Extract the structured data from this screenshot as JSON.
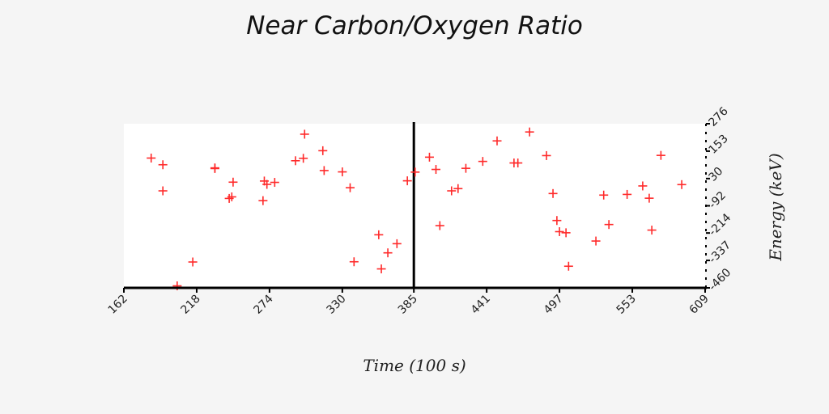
{
  "chart_data": {
    "type": "scatter",
    "title": "Near Carbon/Oxygen Ratio",
    "xlabel": "Time (100 s)",
    "ylabel": "Energy (keV)",
    "xlim": [
      162,
      609
    ],
    "ylim": [
      -460,
      276
    ],
    "x_ticks": [
      "162",
      "218",
      "274",
      "330",
      "385",
      "441",
      "497",
      "553",
      "609"
    ],
    "y_ticks": [
      "-460",
      "-337",
      "-214",
      "-92",
      "30",
      "153",
      "276"
    ],
    "x_tick_values": [
      162,
      218,
      274,
      330,
      385,
      441,
      497,
      553,
      609
    ],
    "y_tick_values": [
      -460,
      -337,
      -214,
      -92,
      30,
      153,
      276
    ],
    "vertical_line_x": 385,
    "marker_color": "#ff2a2a",
    "grid": false,
    "points": [
      {
        "x": 183,
        "y": 122
      },
      {
        "x": 192,
        "y": 92
      },
      {
        "x": 192,
        "y": -25
      },
      {
        "x": 203,
        "y": -451
      },
      {
        "x": 215,
        "y": -344
      },
      {
        "x": 232,
        "y": 78
      },
      {
        "x": 232,
        "y": 75
      },
      {
        "x": 243,
        "y": -59
      },
      {
        "x": 245,
        "y": -52
      },
      {
        "x": 246,
        "y": 14
      },
      {
        "x": 269,
        "y": -69
      },
      {
        "x": 270,
        "y": 19
      },
      {
        "x": 272,
        "y": 4
      },
      {
        "x": 278,
        "y": 13
      },
      {
        "x": 294,
        "y": 110
      },
      {
        "x": 300,
        "y": 121
      },
      {
        "x": 301,
        "y": 229
      },
      {
        "x": 315,
        "y": 155
      },
      {
        "x": 316,
        "y": 66
      },
      {
        "x": 330,
        "y": 60
      },
      {
        "x": 336,
        "y": -11
      },
      {
        "x": 339,
        "y": -343
      },
      {
        "x": 358,
        "y": -222
      },
      {
        "x": 360,
        "y": -375
      },
      {
        "x": 365,
        "y": -303
      },
      {
        "x": 372,
        "y": -262
      },
      {
        "x": 380,
        "y": 20
      },
      {
        "x": 386,
        "y": 59
      },
      {
        "x": 397,
        "y": 126
      },
      {
        "x": 402,
        "y": 71
      },
      {
        "x": 405,
        "y": -181
      },
      {
        "x": 414,
        "y": -25
      },
      {
        "x": 419,
        "y": -15
      },
      {
        "x": 425,
        "y": 76
      },
      {
        "x": 438,
        "y": 107
      },
      {
        "x": 449,
        "y": 199
      },
      {
        "x": 462,
        "y": 100
      },
      {
        "x": 465,
        "y": 100
      },
      {
        "x": 474,
        "y": 239
      },
      {
        "x": 487,
        "y": 133
      },
      {
        "x": 492,
        "y": -37
      },
      {
        "x": 495,
        "y": -158
      },
      {
        "x": 497,
        "y": -208
      },
      {
        "x": 502,
        "y": -213
      },
      {
        "x": 504,
        "y": -363
      },
      {
        "x": 525,
        "y": -250
      },
      {
        "x": 531,
        "y": -44
      },
      {
        "x": 535,
        "y": -176
      },
      {
        "x": 549,
        "y": -41
      },
      {
        "x": 561,
        "y": -3
      },
      {
        "x": 566,
        "y": -58
      },
      {
        "x": 568,
        "y": -201
      },
      {
        "x": 575,
        "y": 134
      },
      {
        "x": 591,
        "y": 3
      }
    ]
  }
}
